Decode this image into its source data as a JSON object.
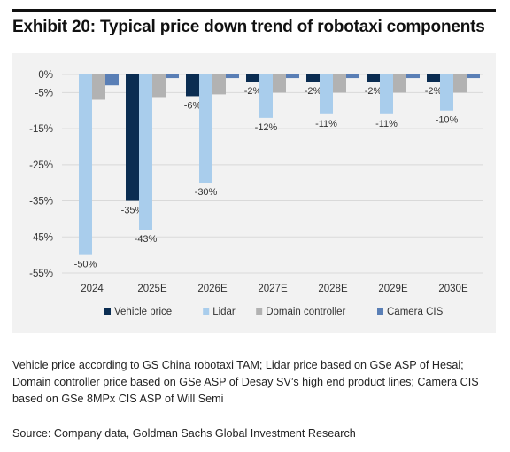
{
  "title": "Exhibit 20: Typical price down trend of robotaxi components",
  "note": "Vehicle price according to GS China robotaxi TAM; Lidar price based on GSe ASP of Hesai; Domain controller price based on GSe ASP of Desay SV’s high end product lines; Camera CIS based on GSe 8MPx CIS ASP of Will Semi",
  "source": "Source: Company data, Goldman Sachs Global Investment Research",
  "chart_data": {
    "type": "bar",
    "categories": [
      "2024",
      "2025E",
      "2026E",
      "2027E",
      "2028E",
      "2029E",
      "2030E"
    ],
    "yticks": [
      0,
      -5,
      -15,
      -25,
      -35,
      -45,
      -55
    ],
    "ytick_labels": [
      "0%",
      "-5%",
      "-15%",
      "-25%",
      "-35%",
      "-45%",
      "-55%"
    ],
    "ylim": [
      -55,
      0
    ],
    "grid": true,
    "legend_position": "bottom",
    "series": [
      {
        "name": "Vehicle price",
        "color": "#0b2d52",
        "values": [
          null,
          -35,
          -6,
          -2,
          -2,
          -2,
          -2
        ],
        "labels": [
          "",
          "-35%",
          "-6%",
          "-2%",
          "-2%",
          "-2%",
          "-2%"
        ]
      },
      {
        "name": "Lidar",
        "color": "#a9cdec",
        "values": [
          -50,
          -43,
          -30,
          -12,
          -11,
          -11,
          -10
        ],
        "labels": [
          "-50%",
          "-43%",
          "-30%",
          "-12%",
          "-11%",
          "-11%",
          "-10%"
        ]
      },
      {
        "name": "Domain controller",
        "color": "#b2b2b2",
        "values": [
          -7,
          -6.5,
          -5.5,
          -5,
          -5,
          -5,
          -5
        ],
        "labels": [
          "",
          "",
          "",
          "",
          "",
          "",
          ""
        ]
      },
      {
        "name": "Camera CIS",
        "color": "#5a7fb6",
        "values": [
          -3,
          -1,
          -1,
          -1,
          -1,
          -1,
          -1
        ],
        "labels": [
          "",
          "",
          "",
          "",
          "",
          "",
          ""
        ]
      }
    ]
  }
}
